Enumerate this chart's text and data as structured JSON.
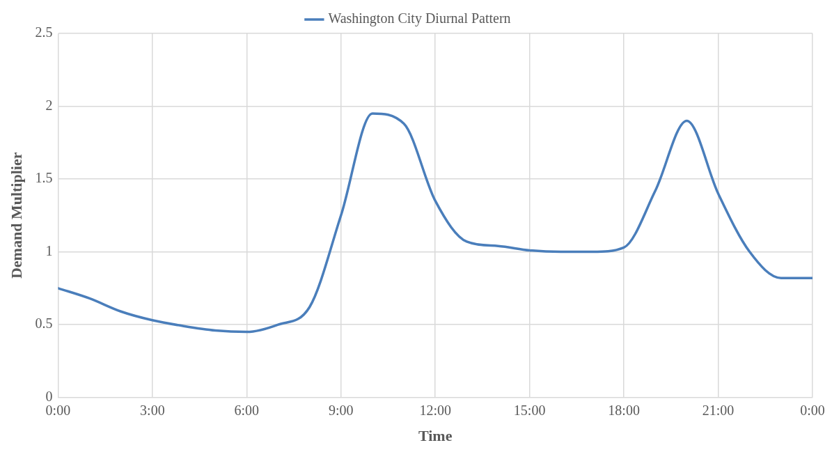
{
  "chart_data": {
    "type": "line",
    "xlabel": "Time",
    "ylabel": "Demand Multiplier",
    "x": [
      0,
      1,
      2,
      3,
      4,
      5,
      6,
      7,
      8,
      9,
      10,
      11,
      12,
      13,
      14,
      15,
      16,
      17,
      18,
      19,
      20,
      21,
      22,
      23,
      24
    ],
    "series": [
      {
        "name": "Washington City Diurnal Pattern",
        "color": "#4a7ebb",
        "values": [
          0.75,
          0.68,
          0.59,
          0.53,
          0.49,
          0.46,
          0.45,
          0.5,
          0.62,
          1.25,
          1.95,
          1.88,
          1.35,
          1.07,
          1.04,
          1.01,
          1.0,
          1.0,
          1.03,
          1.42,
          1.9,
          1.4,
          1.0,
          0.82,
          0.82
        ]
      }
    ],
    "xlim": [
      0,
      24
    ],
    "xticks": [
      {
        "value": 0,
        "label": "0:00"
      },
      {
        "value": 3,
        "label": "3:00"
      },
      {
        "value": 6,
        "label": "6:00"
      },
      {
        "value": 9,
        "label": "9:00"
      },
      {
        "value": 12,
        "label": "12:00"
      },
      {
        "value": 15,
        "label": "15:00"
      },
      {
        "value": 18,
        "label": "18:00"
      },
      {
        "value": 21,
        "label": "21:00"
      },
      {
        "value": 24,
        "label": "0:00"
      }
    ],
    "ylim": [
      0,
      2.5
    ],
    "yticks": [
      0,
      0.5,
      1,
      1.5,
      2,
      2.5
    ],
    "grid": true,
    "legend": "top",
    "marker": "none",
    "line_style": "solid"
  }
}
